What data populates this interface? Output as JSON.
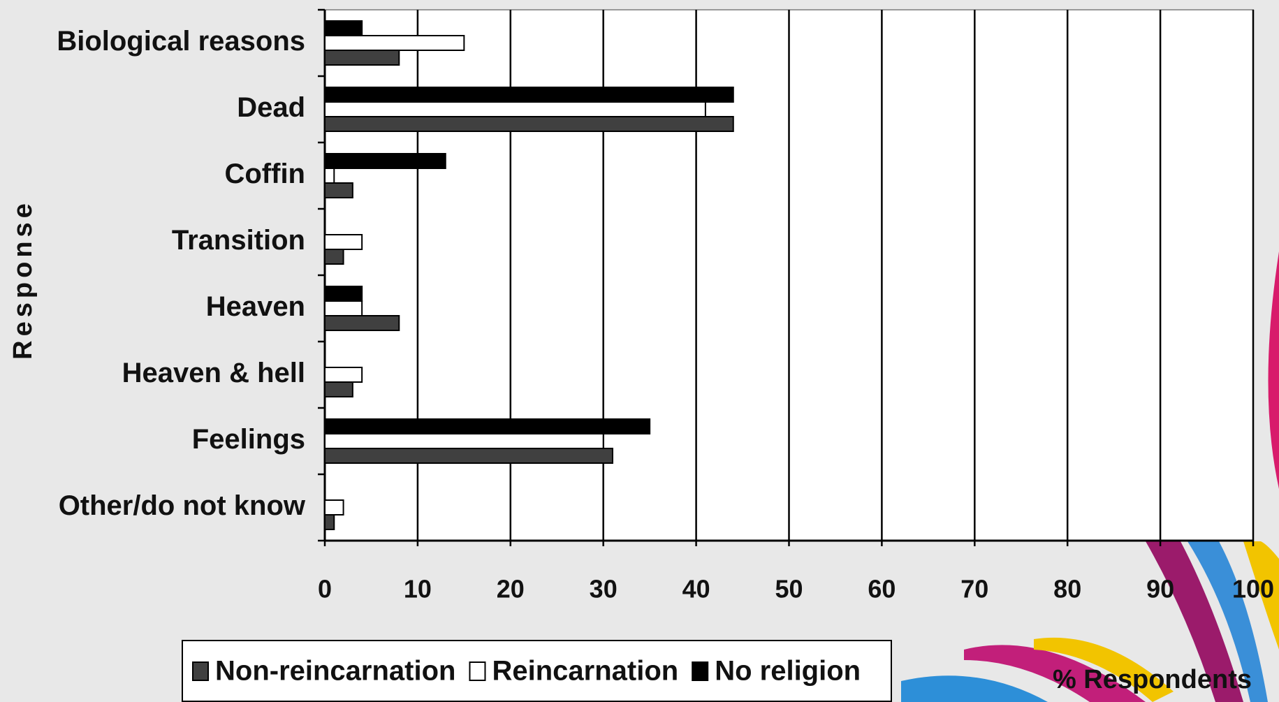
{
  "chart_data": {
    "type": "hbar",
    "y_label": "Response",
    "x_label": "% Respondents",
    "categories": [
      "Biological reasons",
      "Dead",
      "Coffin",
      "Transition",
      "Heaven",
      "Heaven & hell",
      "Feelings",
      "Other/do not know"
    ],
    "series": [
      {
        "name": "Non-reincarnation",
        "color": "#404040",
        "values": [
          8,
          44,
          3,
          2,
          8,
          3,
          31,
          1
        ]
      },
      {
        "name": "Reincarnation",
        "color": "#ffffff",
        "values": [
          15,
          41,
          1,
          4,
          4,
          4,
          30,
          2
        ]
      },
      {
        "name": "No religion",
        "color": "#000000",
        "values": [
          4,
          44,
          13,
          0,
          4,
          0,
          35,
          0
        ]
      }
    ],
    "xlim": [
      0,
      100
    ],
    "xticks": [
      0,
      10,
      20,
      30,
      40,
      50,
      60,
      70,
      80,
      90,
      100
    ],
    "grid": true,
    "legend": "bottom"
  }
}
